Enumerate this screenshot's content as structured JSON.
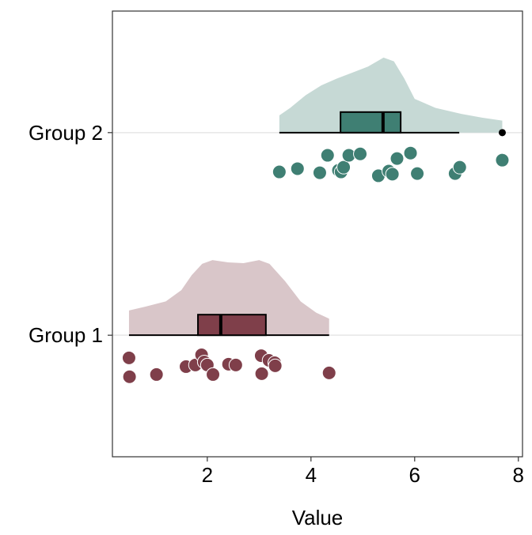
{
  "chart_data": {
    "type": "raincloud",
    "title": "",
    "xlabel": "Value",
    "ylabel": "",
    "xlim": [
      0.17,
      8.08
    ],
    "ylim": [
      0.4,
      2.6
    ],
    "xticks": [
      2,
      4,
      6,
      8
    ],
    "grid": "horizontal major lines only",
    "legend": "none",
    "groups": [
      {
        "name": "Group 1",
        "position": 1,
        "color": "#7F3F4A",
        "cloud_color": "#D9C6C9",
        "box": {
          "whisker_low": 0.49,
          "q1": 1.82,
          "median": 2.26,
          "q3": 3.13,
          "whisker_high": 4.35,
          "outliers": []
        },
        "density": [
          [
            0.49,
            0.33
          ],
          [
            0.8,
            0.38
          ],
          [
            1.2,
            0.45
          ],
          [
            1.5,
            0.6
          ],
          [
            1.7,
            0.8
          ],
          [
            1.9,
            0.95
          ],
          [
            2.1,
            1.0
          ],
          [
            2.4,
            0.97
          ],
          [
            2.7,
            0.96
          ],
          [
            3.0,
            1.0
          ],
          [
            3.2,
            0.95
          ],
          [
            3.5,
            0.72
          ],
          [
            3.8,
            0.45
          ],
          [
            4.1,
            0.3
          ],
          [
            4.35,
            0.22
          ]
        ],
        "points": [
          [
            0.49,
            0.888
          ],
          [
            0.5,
            0.795
          ],
          [
            1.02,
            0.806
          ],
          [
            1.59,
            0.845
          ],
          [
            1.77,
            0.853
          ],
          [
            1.89,
            0.903
          ],
          [
            1.94,
            0.868
          ],
          [
            2.0,
            0.853
          ],
          [
            2.11,
            0.806
          ],
          [
            2.41,
            0.857
          ],
          [
            2.55,
            0.853
          ],
          [
            3.04,
            0.899
          ],
          [
            3.05,
            0.81
          ],
          [
            3.19,
            0.876
          ],
          [
            3.3,
            0.864
          ],
          [
            3.31,
            0.849
          ],
          [
            4.35,
            0.814
          ]
        ]
      },
      {
        "name": "Group 2",
        "position": 2,
        "color": "#3F7F73",
        "cloud_color": "#C6D9D5",
        "box": {
          "whisker_low": 3.39,
          "q1": 4.57,
          "median": 5.39,
          "q3": 5.73,
          "whisker_high": 6.86,
          "outliers": [
            7.69
          ]
        },
        "density": [
          [
            3.39,
            0.23
          ],
          [
            3.6,
            0.33
          ],
          [
            3.9,
            0.5
          ],
          [
            4.2,
            0.63
          ],
          [
            4.5,
            0.72
          ],
          [
            4.8,
            0.8
          ],
          [
            5.1,
            0.88
          ],
          [
            5.4,
            1.0
          ],
          [
            5.6,
            0.95
          ],
          [
            5.8,
            0.72
          ],
          [
            6.0,
            0.45
          ],
          [
            6.4,
            0.33
          ],
          [
            6.9,
            0.25
          ],
          [
            7.3,
            0.2
          ],
          [
            7.69,
            0.16
          ]
        ],
        "points": [
          [
            3.39,
            1.806
          ],
          [
            3.74,
            1.822
          ],
          [
            4.17,
            1.802
          ],
          [
            4.32,
            1.888
          ],
          [
            4.53,
            1.814
          ],
          [
            4.58,
            1.806
          ],
          [
            4.63,
            1.829
          ],
          [
            4.73,
            1.888
          ],
          [
            4.95,
            1.895
          ],
          [
            5.3,
            1.787
          ],
          [
            5.5,
            1.81
          ],
          [
            5.57,
            1.795
          ],
          [
            5.66,
            1.872
          ],
          [
            5.92,
            1.899
          ],
          [
            6.05,
            1.798
          ],
          [
            6.78,
            1.798
          ],
          [
            6.87,
            1.829
          ],
          [
            7.69,
            1.864
          ]
        ]
      }
    ]
  }
}
